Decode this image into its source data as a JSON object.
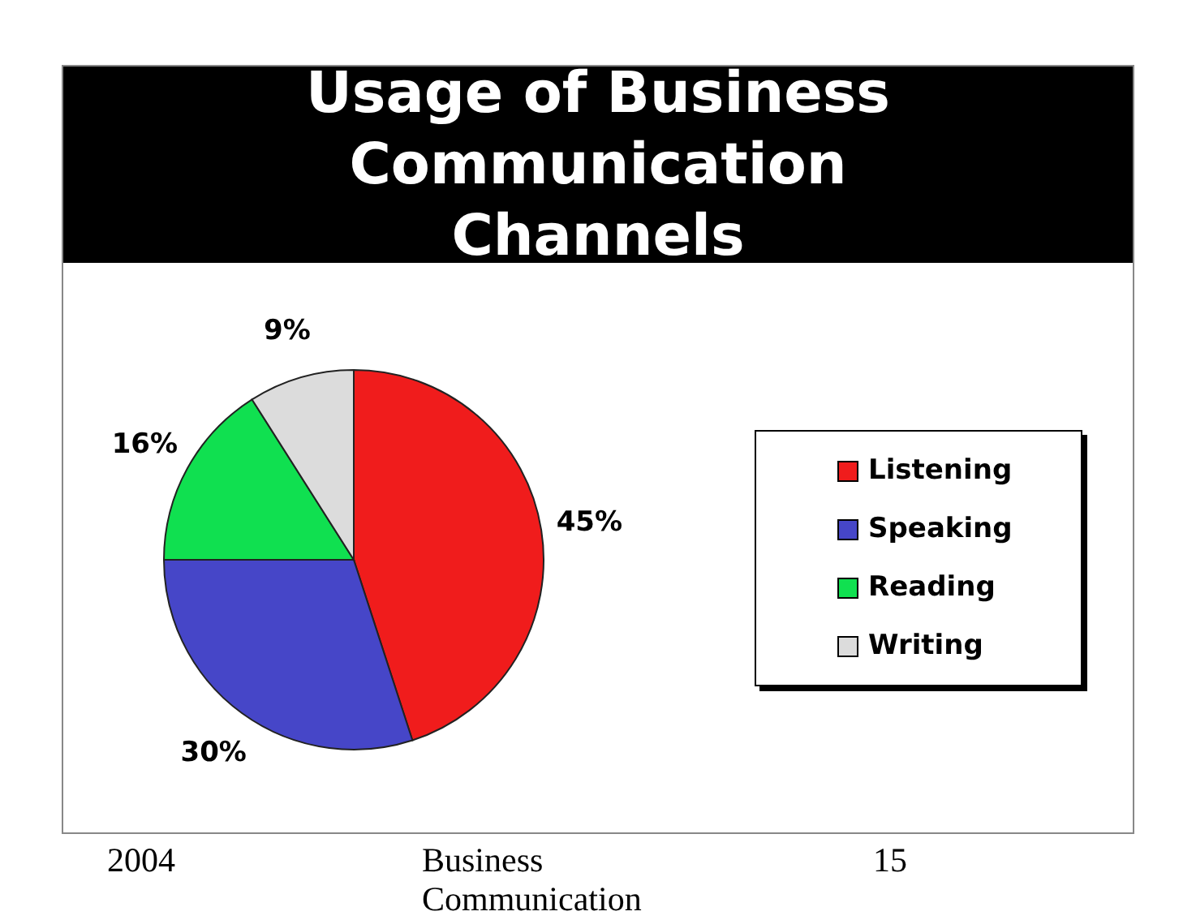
{
  "chart_data": {
    "type": "pie",
    "title": "Usage of Business Communication Channels",
    "categories": [
      "Listening",
      "Speaking",
      "Reading",
      "Writing"
    ],
    "values": [
      45,
      30,
      16,
      9
    ],
    "colors": [
      "#f01c1c",
      "#4646c8",
      "#10e050",
      "#dcdcdc"
    ],
    "value_labels": [
      "45%",
      "30%",
      "16%",
      "9%"
    ],
    "legend": "right",
    "annotations": [
      "2004",
      "Business Communication",
      "15"
    ]
  }
}
